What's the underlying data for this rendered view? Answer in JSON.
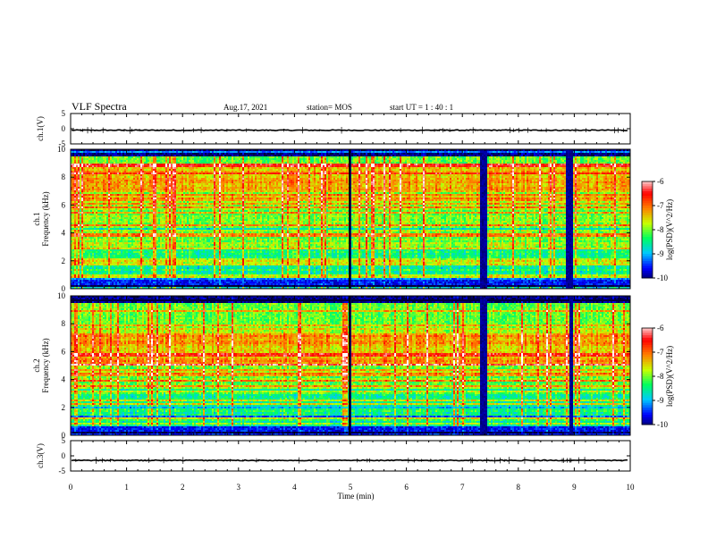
{
  "header": {
    "title": "VLF Spectra",
    "date": "Aug.17, 2021",
    "station": "station= MOS",
    "start": "start UT =  1 : 40 : 1"
  },
  "chart_data": [
    {
      "type": "line",
      "name": "ch1-waveform",
      "ylabel": "ch.1(V)",
      "xlim": [
        0,
        10
      ],
      "ylim": [
        -5,
        5
      ],
      "yticks": [
        "5",
        "0",
        "-5"
      ],
      "baseline": -0.5
    },
    {
      "type": "heatmap",
      "name": "ch1-spectrogram",
      "ylabel_top": "ch.1",
      "ylabel": "Frequency (kHz)",
      "xlim": [
        0,
        10
      ],
      "ylim": [
        0,
        10
      ],
      "yticks": [
        "0",
        "2",
        "4",
        "6",
        "8",
        "10"
      ],
      "colorbar": {
        "label": "log(PSD)(V^2/Hz)",
        "ticks": [
          "-6",
          "-7",
          "-8",
          "-9",
          "-10"
        ],
        "range": [
          -10,
          -6
        ]
      },
      "data_gaps_min": [
        [
          4.97,
          5.0
        ],
        [
          7.32,
          7.45
        ],
        [
          8.85,
          8.98
        ]
      ],
      "strong_band_khz": [
        6.0,
        9.0
      ]
    },
    {
      "type": "heatmap",
      "name": "ch2-spectrogram",
      "ylabel_top": "ch.2",
      "ylabel": "Frequency (kHz)",
      "xlim": [
        0,
        10
      ],
      "ylim": [
        0,
        10
      ],
      "yticks": [
        "0",
        "2",
        "4",
        "6",
        "8",
        "10"
      ],
      "colorbar": {
        "label": "log(PSD)(V^2/Hz)",
        "ticks": [
          "-6",
          "-7",
          "-8",
          "-9",
          "-10"
        ],
        "range": [
          -10,
          -6
        ]
      },
      "data_gaps_min": [
        [
          4.97,
          5.0
        ],
        [
          7.32,
          7.45
        ],
        [
          8.9,
          8.98
        ]
      ],
      "strong_band_khz": [
        5.0,
        8.0
      ]
    },
    {
      "type": "line",
      "name": "ch3-waveform",
      "ylabel": "ch.3(V)",
      "xlim": [
        0,
        10
      ],
      "ylim": [
        -5,
        5
      ],
      "yticks": [
        "5",
        "0",
        "-5"
      ],
      "baseline": -1.5
    }
  ],
  "xaxis": {
    "label": "Time (min)",
    "ticks": [
      "0",
      "1",
      "2",
      "3",
      "4",
      "5",
      "6",
      "7",
      "8",
      "9",
      "10"
    ]
  },
  "colors": {
    "colormap": [
      "#00003a",
      "#0000ff",
      "#00c8ff",
      "#00ff60",
      "#c8ff00",
      "#ff8000",
      "#ff0000",
      "#ffffff"
    ]
  }
}
